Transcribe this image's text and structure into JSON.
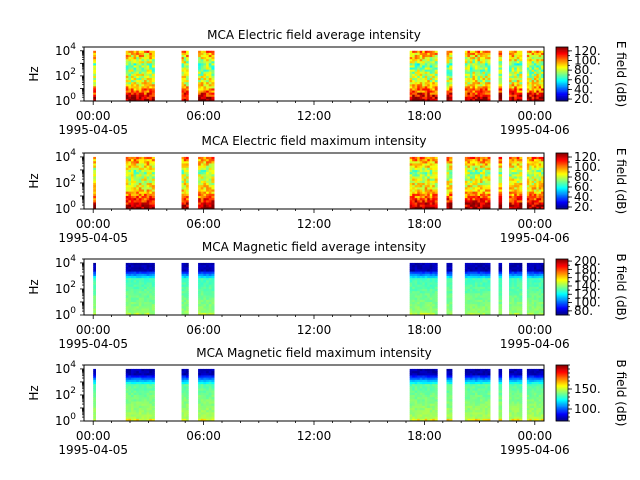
{
  "chart_data": [
    {
      "type": "heatmap",
      "title": "MCA  Electric field average intensity",
      "ylabel": "Hz",
      "ylog": true,
      "ylim": [
        1,
        20000
      ],
      "yticks": [
        {
          "v": 1,
          "m": "10",
          "e": "0"
        },
        {
          "v": 100,
          "m": "10",
          "e": "2"
        },
        {
          "v": 10000,
          "m": "10",
          "e": "4"
        }
      ],
      "xticks": [
        "00:00",
        "06:00",
        "12:00",
        "18:00",
        "00:00"
      ],
      "xdates": {
        "left": "1995-04-05",
        "right": "1995-04-06"
      },
      "colorbar": {
        "label": "E field (dB)",
        "range": [
          16,
          128
        ],
        "ticks": [
          20,
          40,
          60,
          80,
          100,
          120
        ],
        "tick_labels": [
          "20.",
          "40.",
          "60.",
          "80.",
          "100.",
          "120."
        ],
        "minor_step": 10
      },
      "profile": "e_avg"
    },
    {
      "type": "heatmap",
      "title": "MCA  Electric field maximum intensity",
      "ylabel": "Hz",
      "ylog": true,
      "ylim": [
        1,
        20000
      ],
      "yticks": [
        {
          "v": 1,
          "m": "10",
          "e": "0"
        },
        {
          "v": 100,
          "m": "10",
          "e": "2"
        },
        {
          "v": 10000,
          "m": "10",
          "e": "4"
        }
      ],
      "xticks": [
        "00:00",
        "06:00",
        "12:00",
        "18:00",
        "00:00"
      ],
      "xdates": {
        "left": "1995-04-05",
        "right": "1995-04-06"
      },
      "colorbar": {
        "label": "E field (dB)",
        "range": [
          16,
          128
        ],
        "ticks": [
          20,
          40,
          60,
          80,
          100,
          120
        ],
        "tick_labels": [
          "20.",
          "40.",
          "60.",
          "80.",
          "100.",
          "120."
        ],
        "minor_step": 10
      },
      "profile": "e_max"
    },
    {
      "type": "heatmap",
      "title": "MCA  Magnetic field average intensity",
      "ylabel": "Hz",
      "ylog": true,
      "ylim": [
        1,
        20000
      ],
      "yticks": [
        {
          "v": 1,
          "m": "10",
          "e": "0"
        },
        {
          "v": 100,
          "m": "10",
          "e": "2"
        },
        {
          "v": 10000,
          "m": "10",
          "e": "4"
        }
      ],
      "xticks": [
        "00:00",
        "06:00",
        "12:00",
        "18:00",
        "00:00"
      ],
      "xdates": {
        "left": "1995-04-05",
        "right": "1995-04-06"
      },
      "colorbar": {
        "label": "B field (dB)",
        "range": [
          70,
          205
        ],
        "ticks": [
          80,
          100,
          120,
          140,
          160,
          180,
          200
        ],
        "tick_labels": [
          "80.",
          "100.",
          "120.",
          "140.",
          "160.",
          "180.",
          "200."
        ],
        "minor_step": 10
      },
      "profile": "b_avg"
    },
    {
      "type": "heatmap",
      "title": "MCA  Magnetic field maximum intensity",
      "ylabel": "Hz",
      "ylog": true,
      "ylim": [
        1,
        20000
      ],
      "yticks": [
        {
          "v": 1,
          "m": "10",
          "e": "0"
        },
        {
          "v": 100,
          "m": "10",
          "e": "2"
        },
        {
          "v": 10000,
          "m": "10",
          "e": "4"
        }
      ],
      "xticks": [
        "00:00",
        "06:00",
        "12:00",
        "18:00",
        "00:00"
      ],
      "xdates": {
        "left": "1995-04-05",
        "right": "1995-04-06"
      },
      "colorbar": {
        "label": "B field (dB)",
        "range": [
          70,
          210
        ],
        "ticks": [
          100,
          150
        ],
        "tick_labels": [
          "100.",
          "150."
        ],
        "minor_step": 10
      },
      "profile": "b_max"
    }
  ],
  "time_axis": {
    "x_domain_hours": [
      -0.5,
      24.5
    ],
    "data_intervals_hours": [
      [
        0.0,
        0.13
      ],
      [
        1.77,
        3.33
      ],
      [
        4.8,
        5.17
      ],
      [
        5.7,
        6.57
      ],
      [
        17.2,
        18.7
      ],
      [
        19.2,
        19.5
      ],
      [
        20.2,
        21.57
      ],
      [
        22.03,
        22.2
      ],
      [
        22.6,
        23.3
      ],
      [
        23.57,
        24.47
      ]
    ]
  },
  "colors": {
    "background": "#ffffff",
    "axes": "#000000"
  }
}
